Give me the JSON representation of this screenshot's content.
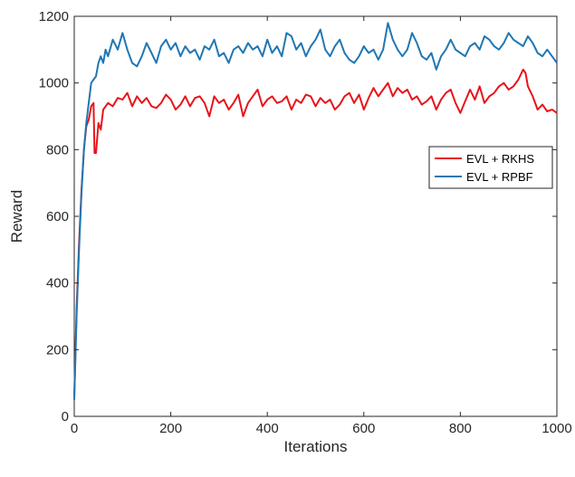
{
  "chart_data": {
    "type": "line",
    "title": "",
    "xlabel": "Iterations",
    "ylabel": "Reward",
    "xlim": [
      0,
      1000
    ],
    "ylim": [
      0,
      1200
    ],
    "xticks": [
      0,
      200,
      400,
      600,
      800,
      1000
    ],
    "yticks": [
      0,
      200,
      400,
      600,
      800,
      1000,
      1200
    ],
    "grid": false,
    "legend_position": "right",
    "series": [
      {
        "name": "EVL + RKHS",
        "color": "#e8141b",
        "x": [
          0,
          5,
          10,
          15,
          20,
          25,
          30,
          35,
          40,
          42,
          45,
          50,
          55,
          60,
          70,
          80,
          90,
          100,
          110,
          120,
          130,
          140,
          150,
          160,
          170,
          180,
          190,
          200,
          210,
          220,
          230,
          240,
          250,
          260,
          270,
          280,
          290,
          300,
          310,
          320,
          330,
          340,
          350,
          360,
          370,
          380,
          390,
          400,
          410,
          420,
          430,
          440,
          450,
          460,
          470,
          480,
          490,
          500,
          510,
          520,
          530,
          540,
          550,
          560,
          570,
          580,
          590,
          600,
          610,
          620,
          630,
          640,
          650,
          660,
          670,
          680,
          690,
          700,
          710,
          720,
          730,
          740,
          750,
          760,
          770,
          780,
          790,
          800,
          810,
          820,
          830,
          840,
          850,
          860,
          870,
          880,
          890,
          900,
          910,
          920,
          930,
          935,
          940,
          950,
          960,
          970,
          980,
          990,
          1000
        ],
        "y": [
          60,
          330,
          520,
          680,
          800,
          870,
          890,
          930,
          940,
          790,
          790,
          880,
          860,
          920,
          940,
          930,
          955,
          950,
          970,
          930,
          960,
          940,
          955,
          930,
          925,
          940,
          965,
          950,
          920,
          935,
          960,
          930,
          955,
          960,
          940,
          900,
          960,
          940,
          950,
          920,
          940,
          965,
          900,
          940,
          960,
          980,
          930,
          950,
          960,
          940,
          945,
          960,
          920,
          950,
          940,
          965,
          960,
          930,
          955,
          940,
          950,
          920,
          935,
          960,
          970,
          940,
          965,
          920,
          955,
          985,
          960,
          980,
          1000,
          960,
          985,
          970,
          980,
          950,
          960,
          935,
          945,
          960,
          920,
          950,
          970,
          980,
          940,
          910,
          945,
          980,
          950,
          990,
          940,
          960,
          970,
          990,
          1000,
          980,
          990,
          1010,
          1040,
          1030,
          990,
          960,
          920,
          935,
          915,
          920,
          910
        ]
      },
      {
        "name": "EVL + RPBF",
        "color": "#1f77b4",
        "x": [
          0,
          5,
          10,
          15,
          20,
          25,
          30,
          35,
          40,
          45,
          50,
          55,
          60,
          65,
          70,
          80,
          90,
          100,
          110,
          120,
          130,
          140,
          150,
          160,
          170,
          180,
          190,
          200,
          210,
          220,
          230,
          240,
          250,
          260,
          270,
          280,
          290,
          300,
          310,
          320,
          330,
          340,
          350,
          360,
          370,
          380,
          390,
          400,
          410,
          420,
          430,
          440,
          450,
          460,
          470,
          480,
          490,
          500,
          510,
          520,
          530,
          540,
          550,
          560,
          570,
          580,
          590,
          600,
          610,
          620,
          630,
          640,
          650,
          660,
          670,
          680,
          690,
          700,
          710,
          720,
          730,
          740,
          750,
          760,
          770,
          780,
          790,
          800,
          810,
          820,
          830,
          840,
          850,
          860,
          870,
          880,
          890,
          900,
          910,
          920,
          930,
          940,
          950,
          960,
          970,
          980,
          990,
          1000
        ],
        "y": [
          50,
          310,
          500,
          670,
          800,
          880,
          940,
          1000,
          1010,
          1020,
          1060,
          1080,
          1060,
          1100,
          1080,
          1130,
          1100,
          1150,
          1100,
          1060,
          1050,
          1080,
          1120,
          1090,
          1060,
          1110,
          1130,
          1100,
          1120,
          1080,
          1110,
          1090,
          1100,
          1070,
          1110,
          1100,
          1130,
          1080,
          1090,
          1060,
          1100,
          1110,
          1090,
          1120,
          1100,
          1110,
          1080,
          1130,
          1090,
          1110,
          1080,
          1150,
          1140,
          1100,
          1120,
          1080,
          1110,
          1130,
          1160,
          1100,
          1080,
          1110,
          1130,
          1090,
          1070,
          1060,
          1080,
          1110,
          1090,
          1100,
          1070,
          1100,
          1180,
          1130,
          1100,
          1080,
          1100,
          1150,
          1120,
          1080,
          1070,
          1090,
          1040,
          1080,
          1100,
          1130,
          1100,
          1090,
          1080,
          1110,
          1120,
          1100,
          1140,
          1130,
          1110,
          1100,
          1120,
          1150,
          1130,
          1120,
          1110,
          1140,
          1120,
          1090,
          1080,
          1100,
          1080,
          1060
        ]
      }
    ]
  }
}
